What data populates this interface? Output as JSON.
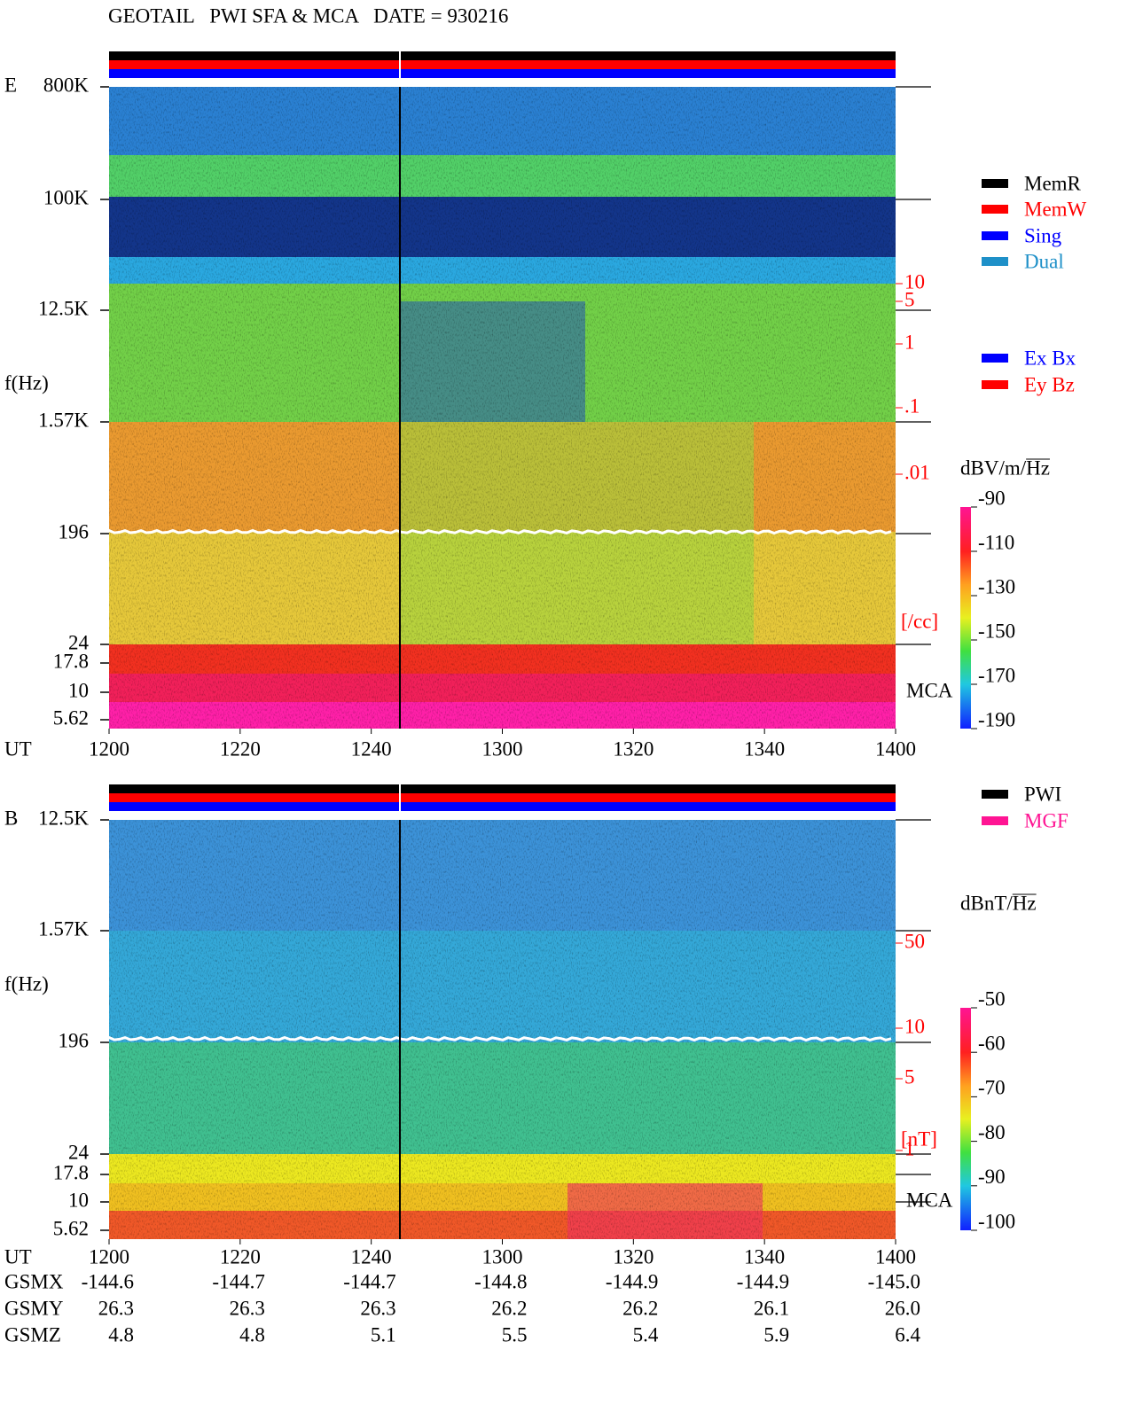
{
  "title": "GEOTAIL   PWI SFA & MCA   DATE = 930216",
  "panels": [
    {
      "label": "E",
      "axis_label": "f(Hz)",
      "freq_ticks": [
        "800K",
        "100K",
        "12.5K",
        "1.57K",
        "196",
        "24",
        "17.8",
        "10",
        "5.62"
      ],
      "density_ticks": [
        "10",
        "5",
        "1",
        ".1",
        ".01"
      ],
      "density_unit": "[/cc]",
      "mca_label": "MCA",
      "legend": [
        {
          "name": "MemR",
          "color": "#000000"
        },
        {
          "name": "MemW",
          "color": "#ff0000"
        },
        {
          "name": "Sing",
          "color": "#0000ff"
        },
        {
          "name": "Dual",
          "color": "#1e90c8"
        }
      ],
      "legend2": [
        {
          "name": "Ex Bx",
          "color": "#0000ff"
        },
        {
          "name": "Ey Bz",
          "color": "#ff0000"
        }
      ],
      "unit": "dBV/m/",
      "unit_root": "Hz",
      "colorbar_ticks": [
        -90,
        -110,
        -130,
        -150,
        -170,
        -190
      ],
      "time_axis": {
        "label": "UT",
        "ticks": [
          "1200",
          "1220",
          "1240",
          "1300",
          "1320",
          "1340",
          "1400"
        ]
      }
    },
    {
      "label": "B",
      "axis_label": "f(Hz)",
      "freq_ticks": [
        "12.5K",
        "1.57K",
        "196",
        "24",
        "17.8",
        "10",
        "5.62"
      ],
      "density_ticks": [
        "50",
        "10",
        "5",
        "1"
      ],
      "density_unit": "[nT]",
      "mca_label": "MCA",
      "legend": [
        {
          "name": "PWI",
          "color": "#000000"
        },
        {
          "name": "MGF",
          "color": "#ff1493"
        }
      ],
      "legend2": [],
      "unit": "dBnT/",
      "unit_root": "Hz",
      "colorbar_ticks": [
        -50,
        -60,
        -70,
        -80,
        -90,
        -100
      ],
      "time_axis": {
        "label": "UT",
        "ticks": [
          "1200",
          "1220",
          "1240",
          "1300",
          "1320",
          "1340",
          "1400"
        ]
      }
    }
  ],
  "orbit": {
    "rows": [
      {
        "label": "GSMX",
        "values": [
          "-144.6",
          "-144.7",
          "-144.7",
          "-144.8",
          "-144.9",
          "-144.9",
          "-145.0"
        ]
      },
      {
        "label": "GSMY",
        "values": [
          "26.3",
          "26.3",
          "26.3",
          "26.2",
          "26.2",
          "26.1",
          "26.0"
        ]
      },
      {
        "label": "GSMZ",
        "values": [
          "4.8",
          "4.8",
          "5.1",
          "5.5",
          "5.4",
          "5.9",
          "6.4"
        ]
      }
    ]
  }
}
